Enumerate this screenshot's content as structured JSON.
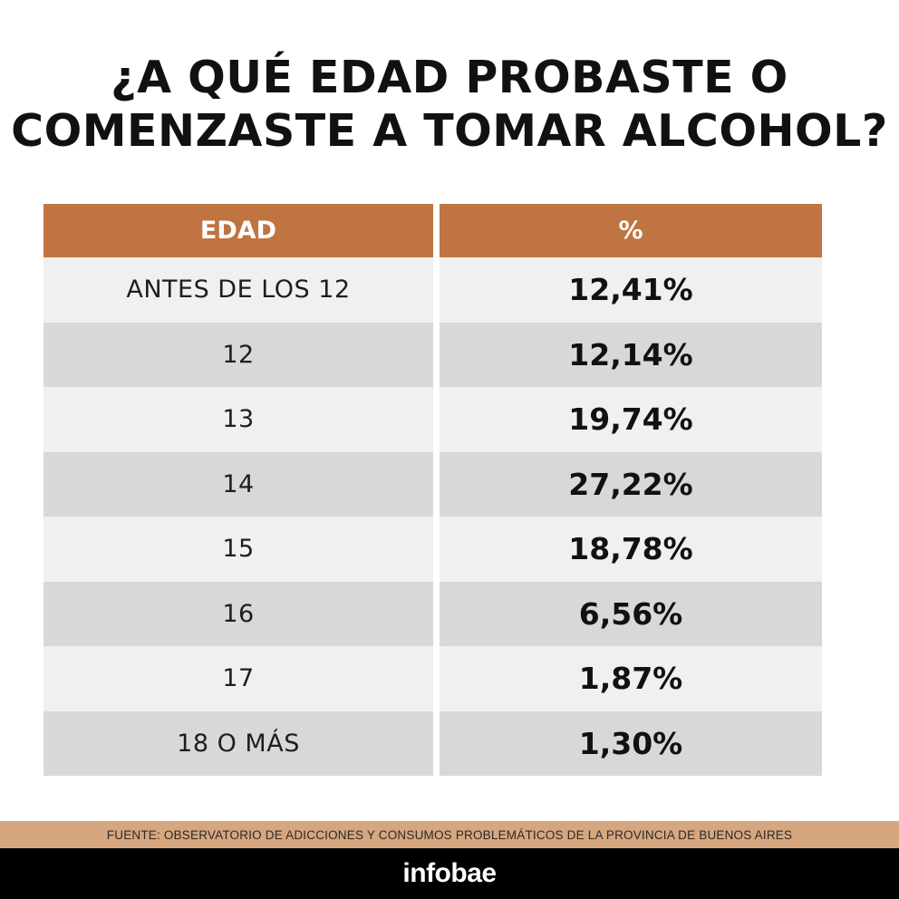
{
  "chart_data": {
    "type": "table",
    "title_lines": [
      "¿A QUÉ EDAD PROBASTE O",
      "COMENZASTE A TOMAR ALCOHOL?"
    ],
    "columns": [
      "EDAD",
      "%"
    ],
    "rows": [
      {
        "age": "ANTES DE LOS 12",
        "percent": "12,41%"
      },
      {
        "age": "12",
        "percent": "12,14%"
      },
      {
        "age": "13",
        "percent": "19,74%"
      },
      {
        "age": "14",
        "percent": "27,22%"
      },
      {
        "age": "15",
        "percent": "18,78%"
      },
      {
        "age": "16",
        "percent": "6,56%"
      },
      {
        "age": "17",
        "percent": "1,87%"
      },
      {
        "age": "18 O MÁS",
        "percent": "1,30%"
      }
    ],
    "colors": {
      "header": "#c07442",
      "row_light": "#f0f0f0",
      "row_dark": "#d8d8d8",
      "source_bar": "#d6a67f",
      "footer_bar": "#000000"
    }
  },
  "source": "FUENTE: OBSERVATORIO DE ADICCIONES Y CONSUMOS PROBLEMÁTICOS DE LA PROVINCIA DE BUENOS AIRES",
  "brand": "infobae"
}
